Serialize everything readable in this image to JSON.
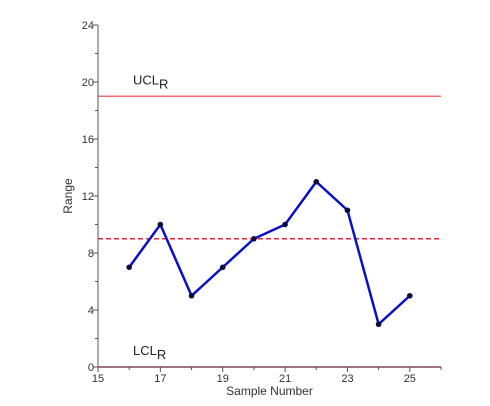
{
  "chart_data": {
    "type": "line",
    "xlabel": "Sample Number",
    "ylabel": "Range",
    "xlim": [
      15,
      26
    ],
    "ylim": [
      0,
      24
    ],
    "x_ticks": [
      15,
      17,
      19,
      21,
      23,
      25
    ],
    "y_ticks": [
      0,
      4,
      8,
      12,
      16,
      20,
      24
    ],
    "grid": false,
    "series": [
      {
        "x": [
          16,
          17,
          18,
          19,
          20,
          21,
          22,
          23,
          24,
          25
        ],
        "values": [
          7,
          10,
          5,
          7,
          9,
          10,
          13,
          11,
          3,
          5
        ],
        "color": "#0a10c8"
      }
    ],
    "reference_lines": [
      {
        "label_main": "UCL",
        "label_sub": "R",
        "value": 19,
        "style": "solid",
        "color": "#ef6f6f"
      },
      {
        "label_main": "",
        "label_sub": "",
        "value": 9,
        "style": "dashed",
        "color": "#d9283c"
      },
      {
        "label_main": "LCL",
        "label_sub": "R",
        "value": 0,
        "style": "solid",
        "color": "#d9283c"
      }
    ]
  }
}
